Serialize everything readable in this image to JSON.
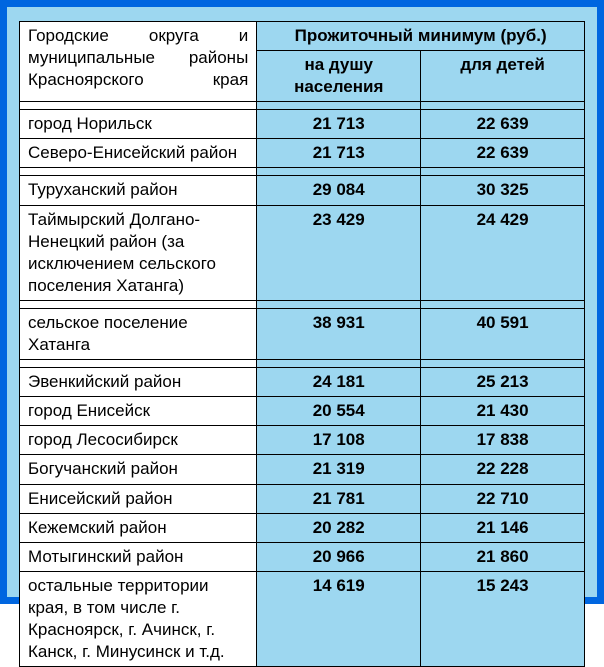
{
  "header": {
    "left": "Городские округа и муниципальные районы Красноярского края",
    "topMerged": "Прожиточный минимум (руб.)",
    "col1": "на душу населения",
    "col2": "для детей"
  },
  "colors": {
    "border": "#0066e0",
    "tableBg": "#9dd7f0",
    "leftColBg": "#ffffff",
    "text": "#000000"
  },
  "fontsize": {
    "body": 17
  },
  "rows": [
    {
      "name": "город Норильск",
      "v1": "21 713",
      "v2": "22 639"
    },
    {
      "name": "Северо-Енисейский район",
      "v1": "21 713",
      "v2": "22 639"
    }
  ],
  "rows2": [
    {
      "name": "Туруханский район",
      "v1": "29 084",
      "v2": "30 325"
    },
    {
      "name": "Таймырский Долгано-Ненецкий район (за исключением сельского поселения Хатанга)",
      "v1": "23 429",
      "v2": "24 429"
    }
  ],
  "rows3": [
    {
      "name": "сельское поселение Хатанга",
      "v1": "38 931",
      "v2": "40 591"
    }
  ],
  "rows4": [
    {
      "name": "Эвенкийский район",
      "v1": "24 181",
      "v2": "25 213"
    },
    {
      "name": "город Енисейск",
      "v1": "20 554",
      "v2": "21 430"
    },
    {
      "name": "город Лесосибирск",
      "v1": "17 108",
      "v2": "17 838"
    },
    {
      "name": "Богучанский район",
      "v1": "21 319",
      "v2": "22 228"
    },
    {
      "name": "Енисейский район",
      "v1": "21 781",
      "v2": "22 710"
    },
    {
      "name": "Кежемский район",
      "v1": "20 282",
      "v2": "21 146"
    },
    {
      "name": "Мотыгинский район",
      "v1": "20 966",
      "v2": "21 860"
    },
    {
      "name": "остальные территории края, в том числе г. Красноярск, г. Ачинск, г. Канск, г. Минусинск и т.д.",
      "v1": "14 619",
      "v2": "15 243"
    }
  ]
}
